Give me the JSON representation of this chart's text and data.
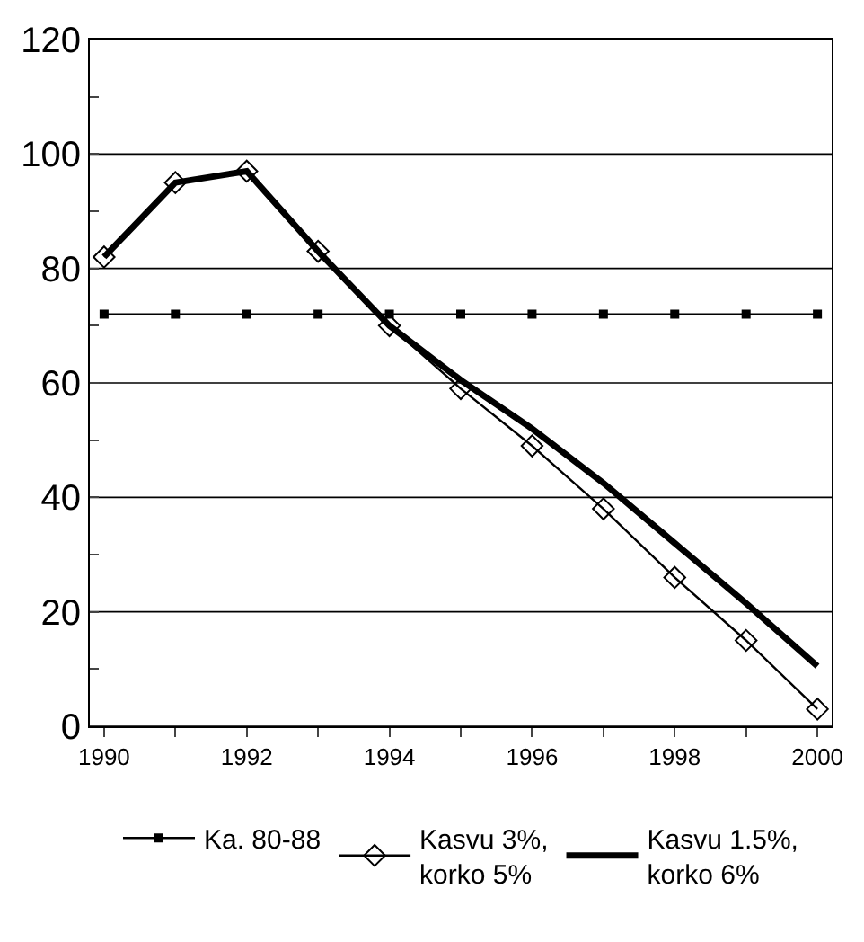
{
  "chart_data": {
    "type": "line",
    "x": [
      1990,
      1991,
      1992,
      1993,
      1994,
      1995,
      1996,
      1997,
      1998,
      1999,
      2000
    ],
    "series": [
      {
        "name": "Ka. 80-88",
        "color": "#000000",
        "marker": "square",
        "values": [
          72,
          72,
          72,
          72,
          72,
          72,
          72,
          72,
          72,
          72,
          72
        ]
      },
      {
        "name": "Kasvu 3%,\nkorko 5%",
        "color": "#000000",
        "marker": "diamond",
        "values": [
          82,
          95,
          97,
          83,
          70,
          59,
          49,
          38,
          26,
          15,
          3
        ]
      },
      {
        "name": "Kasvu 1.5%,\nkorko 6%",
        "color": "#000000",
        "marker": "none",
        "values": [
          82,
          95,
          97,
          83,
          70,
          60.5,
          52,
          42.5,
          32,
          21.5,
          10.5
        ]
      }
    ],
    "xlim": [
      1989.8,
      2000.2
    ],
    "xticks": [
      1990,
      {
        "value": 1991,
        "label": null
      },
      1992,
      {
        "value": 1993,
        "label": null
      },
      1994,
      {
        "value": 1995,
        "label": null
      },
      1996,
      {
        "value": 1997,
        "label": null
      },
      1998,
      {
        "value": 1999,
        "label": null
      },
      2000
    ],
    "ylim": [
      0,
      120
    ],
    "yticks": [
      0,
      {
        "value": 10,
        "label": null
      },
      20,
      {
        "value": 30,
        "label": null
      },
      40,
      {
        "value": 50,
        "label": null
      },
      60,
      {
        "value": 70,
        "label": null
      },
      80,
      {
        "value": 90,
        "label": null
      },
      100,
      {
        "value": 110,
        "label": null
      },
      120
    ],
    "grid": "y",
    "legend": "bottom"
  }
}
